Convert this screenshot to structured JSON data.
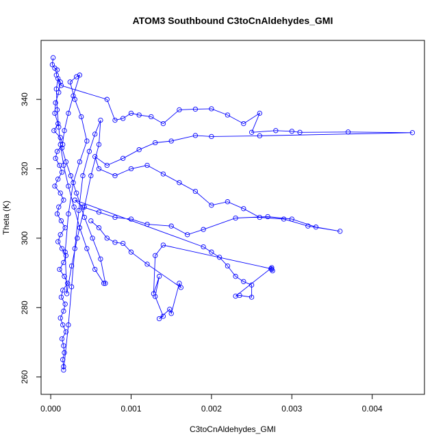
{
  "chart_data": {
    "type": "scatter",
    "title": "ATOM3 Southbound C3toCnAldehydes_GMI",
    "xlabel": "C3toCnAldehydes_GMI",
    "ylabel": "Theta (K)",
    "xlim": [
      -0.00012,
      0.00465
    ],
    "ylim": [
      255,
      357
    ],
    "xticks": [
      0.0,
      0.001,
      0.002,
      0.003,
      0.004
    ],
    "xtick_labels": [
      "0.000",
      "0.001",
      "0.002",
      "0.003",
      "0.004"
    ],
    "yticks": [
      260,
      280,
      300,
      320,
      340
    ],
    "ytick_labels": [
      "260",
      "280",
      "300",
      "320",
      "340"
    ],
    "grid": false,
    "connected_points": true,
    "marker": "open-circle",
    "series": [
      {
        "color": "#0000ff",
        "points": [
          [
            3e-05,
            352
          ],
          [
            2e-05,
            350
          ],
          [
            5e-05,
            349
          ],
          [
            8e-05,
            348.5
          ],
          [
            7e-05,
            347
          ],
          [
            0.00012,
            345
          ],
          [
            0.0001,
            342
          ],
          [
            6e-05,
            339
          ],
          [
            5e-05,
            336
          ],
          [
            9e-05,
            333
          ],
          [
            4e-05,
            331
          ],
          [
            0.00012,
            329
          ],
          [
            0.00015,
            327
          ],
          [
            8e-05,
            325
          ],
          [
            6e-05,
            323
          ],
          [
            0.00011,
            321
          ],
          [
            0.00014,
            319
          ],
          [
            9e-05,
            317
          ],
          [
            5e-05,
            315
          ],
          [
            0.00012,
            313
          ],
          [
            0.00016,
            311
          ],
          [
            0.0001,
            309
          ],
          [
            8e-05,
            307
          ],
          [
            0.00013,
            305
          ],
          [
            0.00018,
            303
          ],
          [
            0.00012,
            301
          ],
          [
            9e-05,
            299
          ],
          [
            0.00014,
            297
          ],
          [
            0.00019,
            295
          ],
          [
            0.00016,
            293
          ],
          [
            0.00011,
            291
          ],
          [
            0.00017,
            289
          ],
          [
            0.00021,
            287
          ],
          [
            0.00015,
            285
          ],
          [
            0.00013,
            283
          ],
          [
            0.00018,
            281
          ],
          [
            0.00016,
            279
          ],
          [
            0.00012,
            277
          ],
          [
            0.00015,
            275
          ],
          [
            0.00019,
            273
          ],
          [
            0.00014,
            271
          ],
          [
            0.00016,
            269
          ],
          [
            0.00017,
            267
          ],
          [
            0.00015,
            265
          ],
          [
            0.00016,
            263
          ],
          [
            0.00016,
            262
          ],
          [
            0.00022,
            275
          ],
          [
            0.00026,
            286
          ],
          [
            0.0003,
            297
          ],
          [
            0.00035,
            308
          ],
          [
            0.0004,
            318
          ],
          [
            0.00048,
            325
          ],
          [
            0.00055,
            330
          ],
          [
            0.00062,
            334
          ],
          [
            0.0006,
            327
          ],
          [
            0.0005,
            318
          ],
          [
            0.00042,
            309
          ],
          [
            0.00033,
            300
          ],
          [
            0.00026,
            292
          ],
          [
            0.0002,
            284
          ],
          [
            0.00018,
            296
          ],
          [
            0.00022,
            307
          ],
          [
            0.00028,
            316
          ],
          [
            0.00036,
            322
          ],
          [
            0.00045,
            328
          ],
          [
            0.00038,
            335
          ],
          [
            0.0003,
            340
          ],
          [
            0.00024,
            345
          ],
          [
            0.00032,
            346.5
          ],
          [
            0.00036,
            347
          ],
          [
            0.00028,
            341
          ],
          [
            0.00022,
            336
          ],
          [
            0.00017,
            331
          ],
          [
            0.00014,
            326
          ],
          [
            0.00019,
            322
          ],
          [
            0.00025,
            318
          ],
          [
            0.00032,
            313
          ],
          [
            0.00042,
            306
          ],
          [
            0.00052,
            300
          ],
          [
            0.00062,
            294
          ],
          [
            0.00068,
            287
          ],
          [
            0.00066,
            287
          ],
          [
            0.00055,
            291
          ],
          [
            0.00045,
            297
          ],
          [
            0.00036,
            303
          ],
          [
            0.00029,
            309
          ],
          [
            0.00022,
            315
          ],
          [
            0.00016,
            321
          ],
          [
            0.00012,
            327
          ],
          [
            0.0001,
            332
          ],
          [
            8e-05,
            337
          ],
          [
            7e-05,
            343
          ],
          [
            9e-05,
            346
          ],
          [
            0.00013,
            344
          ],
          [
            0.0007,
            340
          ],
          [
            0.0008,
            334
          ],
          [
            0.0009,
            334.5
          ],
          [
            0.001,
            336
          ],
          [
            0.0011,
            335.5
          ],
          [
            0.00125,
            335
          ],
          [
            0.0014,
            333
          ],
          [
            0.0016,
            337
          ],
          [
            0.0018,
            337.2
          ],
          [
            0.002,
            337.3
          ],
          [
            0.0022,
            335.5
          ],
          [
            0.0024,
            333
          ],
          [
            0.0026,
            336
          ],
          [
            0.0025,
            330.5
          ],
          [
            0.0028,
            331
          ],
          [
            0.003,
            330.8
          ],
          [
            0.0031,
            330.5
          ],
          [
            0.0037,
            330.6
          ],
          [
            0.0045,
            330.4
          ],
          [
            0.0026,
            329.5
          ],
          [
            0.002,
            329.3
          ],
          [
            0.0018,
            329.6
          ],
          [
            0.0015,
            328
          ],
          [
            0.0013,
            327.5
          ],
          [
            0.0011,
            325.5
          ],
          [
            0.0009,
            323
          ],
          [
            0.0007,
            321
          ],
          [
            0.00055,
            323.5
          ],
          [
            0.0006,
            320
          ],
          [
            0.0008,
            318
          ],
          [
            0.001,
            320
          ],
          [
            0.0012,
            321
          ],
          [
            0.0014,
            318.5
          ],
          [
            0.0016,
            316
          ],
          [
            0.0018,
            313.5
          ],
          [
            0.002,
            309.5
          ],
          [
            0.0022,
            310.5
          ],
          [
            0.0024,
            308.5
          ],
          [
            0.0026,
            306
          ],
          [
            0.0029,
            305.5
          ],
          [
            0.0032,
            303.5
          ],
          [
            0.0036,
            302
          ],
          [
            0.0033,
            303.2
          ],
          [
            0.003,
            305.5
          ],
          [
            0.0027,
            306.2
          ],
          [
            0.0023,
            305.8
          ],
          [
            0.0019,
            302.5
          ],
          [
            0.0017,
            301
          ],
          [
            0.0015,
            303.5
          ],
          [
            0.0012,
            304
          ],
          [
            0.001,
            305.5
          ],
          [
            0.0008,
            306
          ],
          [
            0.0006,
            307.5
          ],
          [
            0.0004,
            309
          ],
          [
            0.0003,
            311
          ],
          [
            0.0019,
            297.5
          ],
          [
            0.002,
            296
          ],
          [
            0.0021,
            294.5
          ],
          [
            0.0022,
            292
          ],
          [
            0.0023,
            289
          ],
          [
            0.0024,
            287.5
          ],
          [
            0.0025,
            286.5
          ],
          [
            0.0025,
            283
          ],
          [
            0.00235,
            283.5
          ],
          [
            0.0023,
            283.3
          ],
          [
            0.00275,
            291.5
          ],
          [
            0.00275,
            291
          ],
          [
            0.00276,
            290.6
          ],
          [
            0.00274,
            291.2
          ],
          [
            0.0014,
            298
          ],
          [
            0.0013,
            295
          ],
          [
            0.00128,
            284
          ],
          [
            0.00135,
            289
          ],
          [
            0.0013,
            283.2
          ],
          [
            0.0014,
            277.5
          ],
          [
            0.00135,
            276.8
          ],
          [
            0.00148,
            279.5
          ],
          [
            0.0015,
            278.3
          ],
          [
            0.0016,
            287
          ],
          [
            0.00162,
            285.8
          ],
          [
            0.0012,
            292.5
          ],
          [
            0.001,
            296
          ],
          [
            0.0009,
            298.5
          ],
          [
            0.0008,
            298.8
          ],
          [
            0.0007,
            300
          ],
          [
            0.0006,
            303
          ],
          [
            0.0005,
            305
          ]
        ]
      }
    ]
  }
}
